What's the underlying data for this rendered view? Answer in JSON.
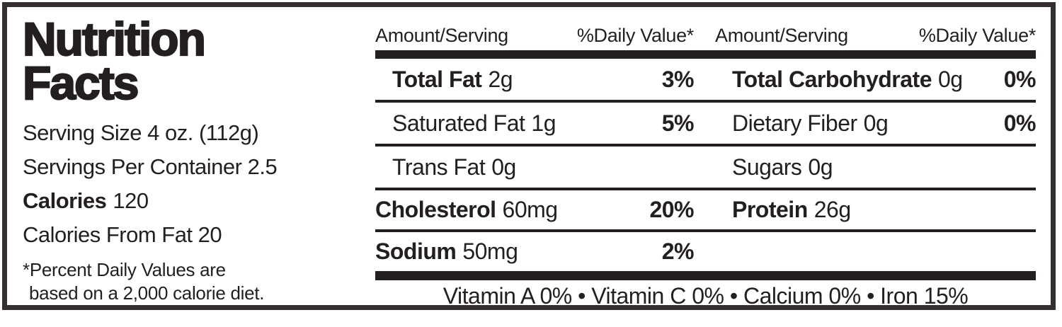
{
  "header_panel": {
    "title_line1": "Nutrition",
    "title_line2": "Facts",
    "serving_size": "Serving Size 4 oz. (112g)",
    "servings_per_container": "Servings Per Container 2.5",
    "calories_label": "Calories",
    "calories_value": "120",
    "calories_from_fat": "Calories From Fat 20",
    "footnote_line1": "*Percent Daily Values are",
    "footnote_line2": "based on a 2,000 calorie diet."
  },
  "table": {
    "col_headers": {
      "amount": "Amount/Serving",
      "daily_value": "%Daily Value*"
    },
    "rows": [
      {
        "mid": {
          "name": "Total Fat",
          "amount": "2g",
          "dv": "3%"
        },
        "right": {
          "name": "Total Carbohydrate",
          "amount": "0g",
          "dv": "0%"
        }
      },
      {
        "mid": {
          "name": "Saturated Fat",
          "amount": "1g",
          "dv": "5%"
        },
        "right": {
          "name": "Dietary Fiber",
          "amount": "0g",
          "dv": "0%"
        }
      },
      {
        "mid": {
          "name": "Trans Fat",
          "amount": "0g",
          "dv": ""
        },
        "right": {
          "name": "Sugars",
          "amount": "0g",
          "dv": ""
        }
      },
      {
        "mid": {
          "name": "Cholesterol",
          "amount": "60mg",
          "dv": "20%"
        },
        "right": {
          "name": "Protein",
          "amount": "26g",
          "dv": ""
        }
      },
      {
        "mid": {
          "name": "Sodium",
          "amount": "50mg",
          "dv": "2%"
        },
        "right": {
          "name": "",
          "amount": "",
          "dv": ""
        }
      }
    ],
    "vitamins_line": "Vitamin A 0% • Vitamin C 0% • Calcium 0% • Iron 15%"
  },
  "colors": {
    "ink": "#231f20",
    "border": "#352e2f",
    "background": "#ffffff"
  }
}
